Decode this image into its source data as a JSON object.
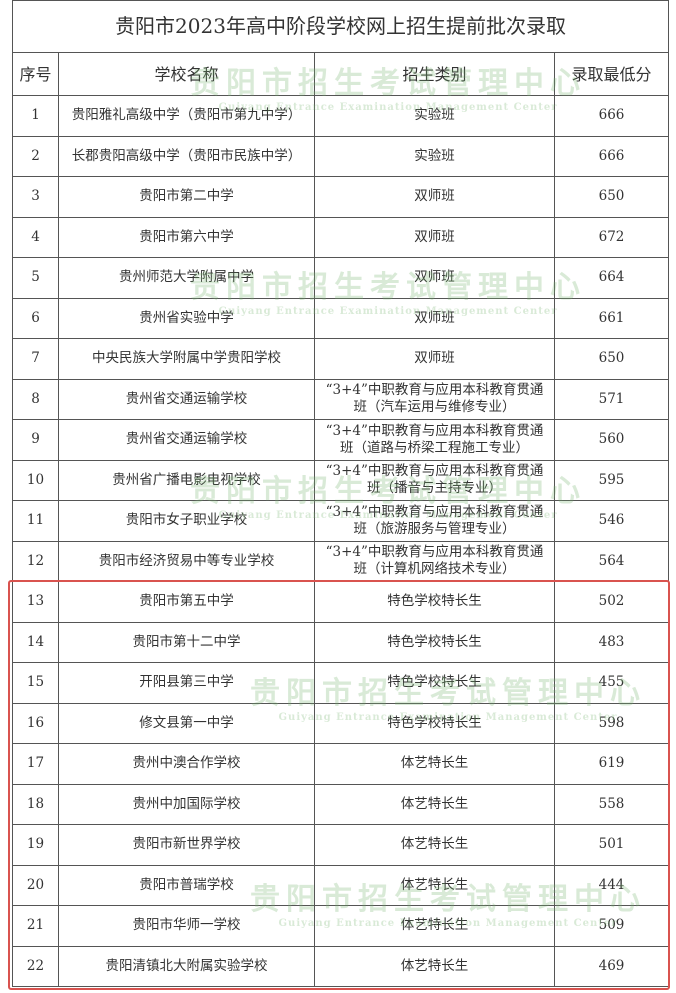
{
  "title": "贵阳市2023年高中阶段学校网上招生提前批次录取",
  "headers": [
    "序号",
    "学校名称",
    "招生类别",
    "录取最低分"
  ],
  "watermark": {
    "text": "贵阳市招生考试管理中心",
    "subtext": "Guiyang Entrance Examination Management Center"
  },
  "rows": [
    {
      "no": "1",
      "school": "贵阳雅礼高级中学（贵阳市第九中学）",
      "category": "实验班",
      "score": "666"
    },
    {
      "no": "2",
      "school": "长郡贵阳高级中学（贵阳市民族中学）",
      "category": "实验班",
      "score": "666"
    },
    {
      "no": "3",
      "school": "贵阳市第二中学",
      "category": "双师班",
      "score": "650"
    },
    {
      "no": "4",
      "school": "贵阳市第六中学",
      "category": "双师班",
      "score": "672"
    },
    {
      "no": "5",
      "school": "贵州师范大学附属中学",
      "category": "双师班",
      "score": "664"
    },
    {
      "no": "6",
      "school": "贵州省实验中学",
      "category": "双师班",
      "score": "661"
    },
    {
      "no": "7",
      "school": "中央民族大学附属中学贵阳学校",
      "category": "双师班",
      "score": "650"
    },
    {
      "no": "8",
      "school": "贵州省交通运输学校",
      "category": "“3+4”中职教育与应用本科教育贯通班（汽车运用与维修专业）",
      "score": "571"
    },
    {
      "no": "9",
      "school": "贵州省交通运输学校",
      "category": "“3+4”中职教育与应用本科教育贯通班（道路与桥梁工程施工专业）",
      "score": "560"
    },
    {
      "no": "10",
      "school": "贵州省广播电影电视学校",
      "category": "“3+4”中职教育与应用本科教育贯通班（播音与主持专业）",
      "score": "595"
    },
    {
      "no": "11",
      "school": "贵阳市女子职业学校",
      "category": "“3+4”中职教育与应用本科教育贯通班（旅游服务与管理专业）",
      "score": "546"
    },
    {
      "no": "12",
      "school": "贵阳市经济贸易中等专业学校",
      "category": "“3+4”中职教育与应用本科教育贯通班（计算机网络技术专业）",
      "score": "564"
    },
    {
      "no": "13",
      "school": "贵阳市第五中学",
      "category": "特色学校特长生",
      "score": "502"
    },
    {
      "no": "14",
      "school": "贵阳市第十二中学",
      "category": "特色学校特长生",
      "score": "483"
    },
    {
      "no": "15",
      "school": "开阳县第三中学",
      "category": "特色学校特长生",
      "score": "455"
    },
    {
      "no": "16",
      "school": "修文县第一中学",
      "category": "特色学校特长生",
      "score": "598"
    },
    {
      "no": "17",
      "school": "贵州中澳合作学校",
      "category": "体艺特长生",
      "score": "619"
    },
    {
      "no": "18",
      "school": "贵州中加国际学校",
      "category": "体艺特长生",
      "score": "558"
    },
    {
      "no": "19",
      "school": "贵阳市新世界学校",
      "category": "体艺特长生",
      "score": "501"
    },
    {
      "no": "20",
      "school": "贵阳市普瑞学校",
      "category": "体艺特长生",
      "score": "444"
    },
    {
      "no": "21",
      "school": "贵阳市华师一学校",
      "category": "体艺特长生",
      "score": "509"
    },
    {
      "no": "22",
      "school": "贵阳清镇北大附属实验学校",
      "category": "体艺特长生",
      "score": "469"
    }
  ],
  "highlight_color": "#d9534f"
}
